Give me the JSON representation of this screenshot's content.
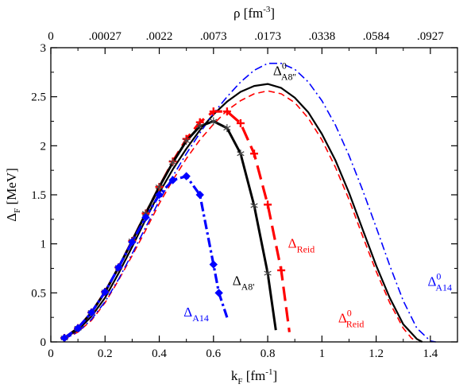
{
  "chart_data": {
    "type": "line",
    "xlabel": {
      "main": "k",
      "sub": "F",
      "unit": " [fm",
      "unit_sup": "-1",
      "unit_close": "]"
    },
    "ylabel": {
      "main": "Δ",
      "sub": "F",
      "unit": " [MeV]"
    },
    "toplabel": {
      "main": "ρ [fm",
      "sup": "-3",
      "close": "]"
    },
    "xlim": [
      0,
      1.5
    ],
    "ylim": [
      0,
      3
    ],
    "x_ticks": [
      "0",
      "0.2",
      "0.4",
      "0.6",
      "0.8",
      "1",
      "1.2",
      "1.4"
    ],
    "x_tick_values": [
      0,
      0.2,
      0.4,
      0.6,
      0.8,
      1.0,
      1.2,
      1.4
    ],
    "y_ticks": [
      "0",
      "0.5",
      "1",
      "1.5",
      "2",
      "2.5",
      "3"
    ],
    "y_tick_values": [
      0,
      0.5,
      1,
      1.5,
      2,
      2.5,
      3
    ],
    "top_ticks": [
      "0",
      ".00027",
      ".0022",
      ".0073",
      ".0173",
      ".0338",
      ".0584",
      ".0927"
    ],
    "grid": false,
    "legend": "none",
    "series": [
      {
        "name": "Δ0 A8''",
        "color": "#000000",
        "dash": "none",
        "width": 2.2,
        "marker": "none",
        "x": [
          0.05,
          0.1,
          0.15,
          0.2,
          0.25,
          0.3,
          0.35,
          0.4,
          0.45,
          0.5,
          0.55,
          0.6,
          0.65,
          0.7,
          0.75,
          0.8,
          0.85,
          0.9,
          0.95,
          1.0,
          1.05,
          1.1,
          1.15,
          1.2,
          1.25,
          1.3,
          1.35,
          1.37
        ],
        "y": [
          0.04,
          0.12,
          0.26,
          0.45,
          0.7,
          0.97,
          1.25,
          1.52,
          1.76,
          1.97,
          2.16,
          2.32,
          2.45,
          2.55,
          2.61,
          2.63,
          2.59,
          2.49,
          2.34,
          2.12,
          1.85,
          1.52,
          1.15,
          0.78,
          0.45,
          0.18,
          0.03,
          0.0
        ]
      },
      {
        "name": "Δ0 Reid",
        "color": "#ff0000",
        "dash": "8,5",
        "width": 1.6,
        "marker": "none",
        "x": [
          0.05,
          0.1,
          0.15,
          0.2,
          0.25,
          0.3,
          0.35,
          0.4,
          0.45,
          0.5,
          0.55,
          0.6,
          0.65,
          0.7,
          0.75,
          0.8,
          0.85,
          0.9,
          0.95,
          1.0,
          1.05,
          1.1,
          1.15,
          1.2,
          1.25,
          1.3,
          1.33,
          1.35
        ],
        "y": [
          0.03,
          0.1,
          0.22,
          0.4,
          0.63,
          0.88,
          1.14,
          1.41,
          1.65,
          1.87,
          2.06,
          2.22,
          2.36,
          2.46,
          2.53,
          2.56,
          2.53,
          2.44,
          2.28,
          2.06,
          1.78,
          1.45,
          1.08,
          0.72,
          0.4,
          0.14,
          0.04,
          0.0
        ]
      },
      {
        "name": "Δ0 A14",
        "color": "#0000ff",
        "dash": "10,4,2,4",
        "width": 1.6,
        "marker": "none",
        "x": [
          0.05,
          0.1,
          0.15,
          0.2,
          0.25,
          0.3,
          0.35,
          0.4,
          0.45,
          0.5,
          0.55,
          0.6,
          0.65,
          0.7,
          0.75,
          0.8,
          0.85,
          0.9,
          0.95,
          1.0,
          1.05,
          1.1,
          1.15,
          1.2,
          1.25,
          1.3,
          1.35,
          1.4,
          1.42
        ],
        "y": [
          0.03,
          0.1,
          0.23,
          0.41,
          0.64,
          0.9,
          1.17,
          1.44,
          1.69,
          1.92,
          2.13,
          2.33,
          2.5,
          2.65,
          2.77,
          2.84,
          2.84,
          2.78,
          2.65,
          2.46,
          2.21,
          1.9,
          1.55,
          1.17,
          0.78,
          0.42,
          0.14,
          0.01,
          0.0
        ]
      },
      {
        "name": "Δ Reid",
        "color": "#ff0000",
        "dash": "18,8",
        "width": 3.2,
        "marker": "plus",
        "x": [
          0.05,
          0.1,
          0.15,
          0.2,
          0.25,
          0.3,
          0.35,
          0.4,
          0.45,
          0.5,
          0.55,
          0.6,
          0.65,
          0.7,
          0.75,
          0.8,
          0.85,
          0.88
        ],
        "y": [
          0.04,
          0.14,
          0.3,
          0.51,
          0.76,
          1.03,
          1.31,
          1.58,
          1.84,
          2.07,
          2.24,
          2.35,
          2.35,
          2.23,
          1.92,
          1.4,
          0.73,
          0.1
        ]
      },
      {
        "name": "Δ A8'",
        "color": "#000000",
        "dash": "none",
        "width": 3.0,
        "marker": "star",
        "x": [
          0.05,
          0.1,
          0.15,
          0.2,
          0.25,
          0.3,
          0.35,
          0.4,
          0.45,
          0.5,
          0.55,
          0.6,
          0.65,
          0.7,
          0.75,
          0.8,
          0.83
        ],
        "y": [
          0.04,
          0.14,
          0.3,
          0.51,
          0.76,
          1.03,
          1.31,
          1.58,
          1.83,
          2.05,
          2.2,
          2.25,
          2.18,
          1.92,
          1.39,
          0.7,
          0.12
        ]
      },
      {
        "name": "Δ A14",
        "color": "#0000ff",
        "dash": "12,4,3,4",
        "width": 3.2,
        "marker": "diamond",
        "x": [
          0.05,
          0.1,
          0.15,
          0.2,
          0.25,
          0.3,
          0.35,
          0.4,
          0.45,
          0.5,
          0.55,
          0.6,
          0.62,
          0.65
        ],
        "y": [
          0.04,
          0.14,
          0.3,
          0.51,
          0.76,
          1.02,
          1.27,
          1.5,
          1.65,
          1.69,
          1.5,
          0.79,
          0.5,
          0.25
        ]
      }
    ],
    "annotations": [
      {
        "key": "a8pp",
        "main": "Δ",
        "sup": "0",
        "sub": "A8''",
        "color": "#000000",
        "x": 0.82,
        "y": 2.72
      },
      {
        "key": "reid",
        "main": "Δ",
        "sup": "",
        "sub": "Reid",
        "color": "#ff0000",
        "x": 0.875,
        "y": 0.96
      },
      {
        "key": "a8p",
        "main": "Δ",
        "sup": "",
        "sub": "A8'",
        "color": "#000000",
        "x": 0.67,
        "y": 0.58
      },
      {
        "key": "a14",
        "main": "Δ",
        "sup": "",
        "sub": "A14",
        "color": "#0000ff",
        "x": 0.49,
        "y": 0.26
      },
      {
        "key": "a14_0",
        "main": "Δ",
        "sup": "0",
        "sub": "A14",
        "color": "#0000ff",
        "x": 1.39,
        "y": 0.57
      },
      {
        "key": "reid_0",
        "main": "Δ",
        "sup": "0",
        "sub": "Reid",
        "color": "#ff0000",
        "x": 1.06,
        "y": 0.2
      }
    ]
  }
}
